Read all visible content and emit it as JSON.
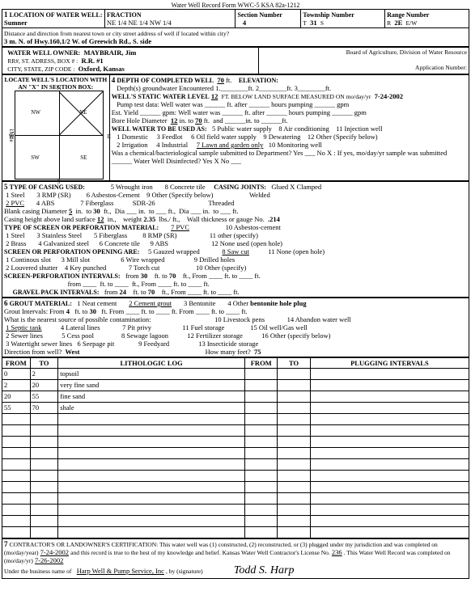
{
  "form_header": "Water Well Record    Form WWC-5    KSA 82a-1212",
  "loc": {
    "county_label": "LOCATION OF WATER WELL:",
    "county": "Sumner",
    "fraction_label": "FRACTION",
    "fraction": "NE   1/4   NE   1/4   NW   1/4",
    "section_label": "Section Number",
    "section": "4",
    "township_label": "Township Number",
    "township_prefix": "T",
    "township": "31",
    "township_suffix": "S",
    "range_label": "Range Number",
    "range_prefix": "R",
    "range": "2E",
    "range_suffix": "E/W"
  },
  "dist_label": "Distance and direction from nearest town or city  street address of well if located within city?",
  "dist": "3 m. N. of Hwy.160,1/2 W. of Greewich Rd., S. side",
  "owner": {
    "owner_label": "WATER WELL OWNER:",
    "owner": "MAYBRAIR, Jim",
    "addr_label": "RR#, ST. ADRESS, BOX # :",
    "addr": "R.R. #1",
    "city_label": "CITY, STATE, ZIP CODE :",
    "city": "Oxford, Kansas",
    "board": "Board of Agriculture, Division of Water Resource",
    "appno": "Application Number:"
  },
  "locbox_label": "LOCATE WELL'S LOCATION WITH AN \"X\" IN SECTION BOX:",
  "depth": {
    "title": "DEPTH OF COMPLETED WELL",
    "depth_ft": "70",
    "elev_label": "ELEVATION:",
    "depths_enc": "Depth(s) groundwater Encountered     1.________ft.     2________ft.     3________ft.",
    "static_label": "WELL'S STATIC WATER LEVEL",
    "static": "12",
    "static_after": "FT. BELOW LAND SURFACE MEASURED ON mo/day/yr",
    "date": "7-24-2002",
    "pump_test": "Pump test data:     Well water was ______ ft. after ______ hours pumping ______ gpm",
    "est_yield": "Est. Yield ______ gpm:     Well water was ______ ft. after ______ hours pumping ______ gpm",
    "bore_label": "Bore Hole Diameter",
    "bore_d": "12",
    "bore_to": "70",
    "use_label": "WELL WATER TO BE USED AS:",
    "uses": [
      "1 Domestic",
      "2 Irrigation",
      "3 Feedlot",
      "4 Industrial",
      "5 Public water supply",
      "6 Oil field water supply",
      "7 Lawn and garden only",
      "8 Air conditioning",
      "9 Dewatering",
      "10 Monitoring well",
      "11 Injection well",
      "12 Other (Specify below)"
    ],
    "use_sel": "7 Lawn and garden only",
    "chem": "Was a chemical/bacteriological sample submitted to Department?  Yes ___  No  X  : If yes, mo/day/yr sample was submitted ______     Water Well Disinfected?     Yes  X     No ___"
  },
  "casing": {
    "title": "TYPE OF CASING USED:",
    "opts": [
      "1 Steel",
      "2 PVC",
      "3 RMP (SR)",
      "4 ABS",
      "5 Wrought iron",
      "6 Asbestos-Cement",
      "7 Fiberglass",
      "8 Concrete tile",
      "9 Other (Specify below)",
      "SDR-26"
    ],
    "sel1": "2 PVC",
    "joints_label": "CASING JOINTS:",
    "joints": [
      "Glued  X  Clamped",
      "Welded",
      "Threaded"
    ],
    "blank_d": "5",
    "blank_to": "30",
    "weight": "2.35",
    "height": "12",
    "wall": ".214",
    "screen_title": "TYPE OF SCREEN OR PERFORATION MATERIAL:",
    "screen_opts": [
      "1 Steel",
      "2 Brass",
      "3 Stainless Steel",
      "4 Galvanized steel",
      "5 Fiberglass",
      "6 Concrete tile",
      "7 PVC",
      "8 RMP (SR)",
      "9 ABS",
      "10 Asbestos-cement",
      "11 other (specify)",
      "12 None used (open hole)"
    ],
    "screen_sel": "7 PVC",
    "open_title": "SCREEN OR PERFORATION OPENING ARE:",
    "open_opts": [
      "1 Continous slot",
      "2 Louvered shutter",
      "3 Mill slot",
      "4 Key punched",
      "5 Gauzed wrapped",
      "6 Wire wrapped",
      "7 Torch cut",
      "8 Saw cut",
      "9 Drilled holes",
      "10 Other  (specify)",
      "11 None (open hole)"
    ],
    "open_sel": "8 Saw cut",
    "sp_title": "SCREEN-PERFORATION INTERVALS:",
    "sp_from": "30",
    "sp_to": "70",
    "gp_title": "GRAVEL PACK INTERVALS:",
    "gp_from": "24",
    "gp_to": "70"
  },
  "grout": {
    "title": "GROUT MATERIAL:",
    "opts": [
      "1 Neat cement",
      "2 Cement grout",
      "3 Bentonite",
      "4 Other"
    ],
    "sel": "2 Cement grout",
    "other": "bentonite hole plug",
    "gi_from": "4",
    "gi_to": "30",
    "contam_label": "What is the nearest source of possible contamination:",
    "contam_opts": [
      "1 Septic tank",
      "2 Sewer lines",
      "3 Watertight sewer lines",
      "4 Lateral lines",
      "5 Cess pool",
      "6 Seepage pit",
      "7 Pit privy",
      "8 Sewage lagoon",
      "9 Feedyard",
      "10 Livestock pens",
      "11 Fuel storage",
      "12 Fertilizer storage",
      "13 Insecticide storage",
      "14 Abandon water well",
      "15 Oil well/Gas well",
      "16 Other (specify below)"
    ],
    "contam_sel": "1 Septic tank",
    "dir_label": "Direction from well?",
    "dir": "West",
    "dist_label": "How many feet?",
    "dist": "75"
  },
  "log": {
    "headers": [
      "FROM",
      "TO",
      "LITHOLOGIC LOG",
      "FROM",
      "TO",
      "PLUGGING INTERVALS"
    ],
    "rows": [
      [
        "0",
        "2",
        "topsoil",
        "",
        "",
        ""
      ],
      [
        "2",
        "20",
        "very fine sand",
        "",
        "",
        ""
      ],
      [
        "20",
        "55",
        "fine sand",
        "",
        "",
        ""
      ],
      [
        "55",
        "70",
        "shale",
        "",
        "",
        ""
      ]
    ]
  },
  "cert": {
    "text1": "CONTRACTOR'S OR LANDOWNER'S CERTIFICATION:  This water well was (1) constructed, (2) reconstructed, or (3) plugged under my jurisdiction and was completed on (mo/day/year)",
    "date1": "7-24-2002",
    "text2": "and this record is true to the best of my knowledge and belief.  Kansas Water Well Contractor's License No.",
    "lic": "236",
    "text3": ". This Water Well Record was completed on (mo/day/yr)",
    "date2": "7-26-2002",
    "text4": "Under the business name of",
    "biz": "Harp Well & Pump Service, Inc",
    "text5": ", by (signature)",
    "sig": "Todd S. Harp"
  }
}
